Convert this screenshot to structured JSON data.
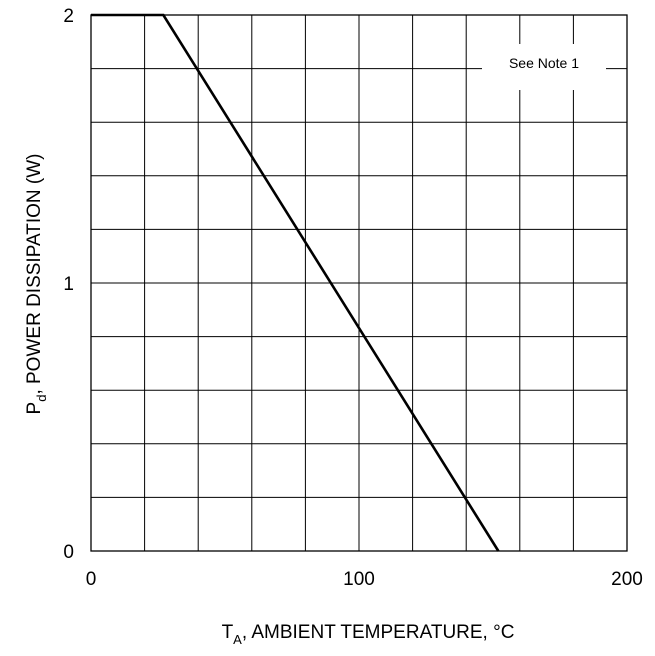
{
  "chart_data": {
    "type": "line",
    "title": "",
    "xlabel": {
      "main": "T",
      "sub": "A",
      "rest": ", AMBIENT TEMPERATURE, °C"
    },
    "ylabel": {
      "main": "P",
      "sub": "d",
      "rest": ", POWER DISSIPATION  (W)"
    },
    "xlim": [
      0,
      200
    ],
    "ylim": [
      0,
      2
    ],
    "x_ticks": [
      0,
      100,
      200
    ],
    "y_ticks": [
      0,
      1,
      2
    ],
    "grid": true,
    "x_grid_step": 20,
    "y_grid_step": 0.2,
    "series": [
      {
        "x": [
          0,
          27,
          152
        ],
        "y": [
          2.0,
          2.0,
          0.0
        ],
        "color": "#000000"
      }
    ],
    "annotations": [
      {
        "text": "See Note 1"
      }
    ]
  }
}
